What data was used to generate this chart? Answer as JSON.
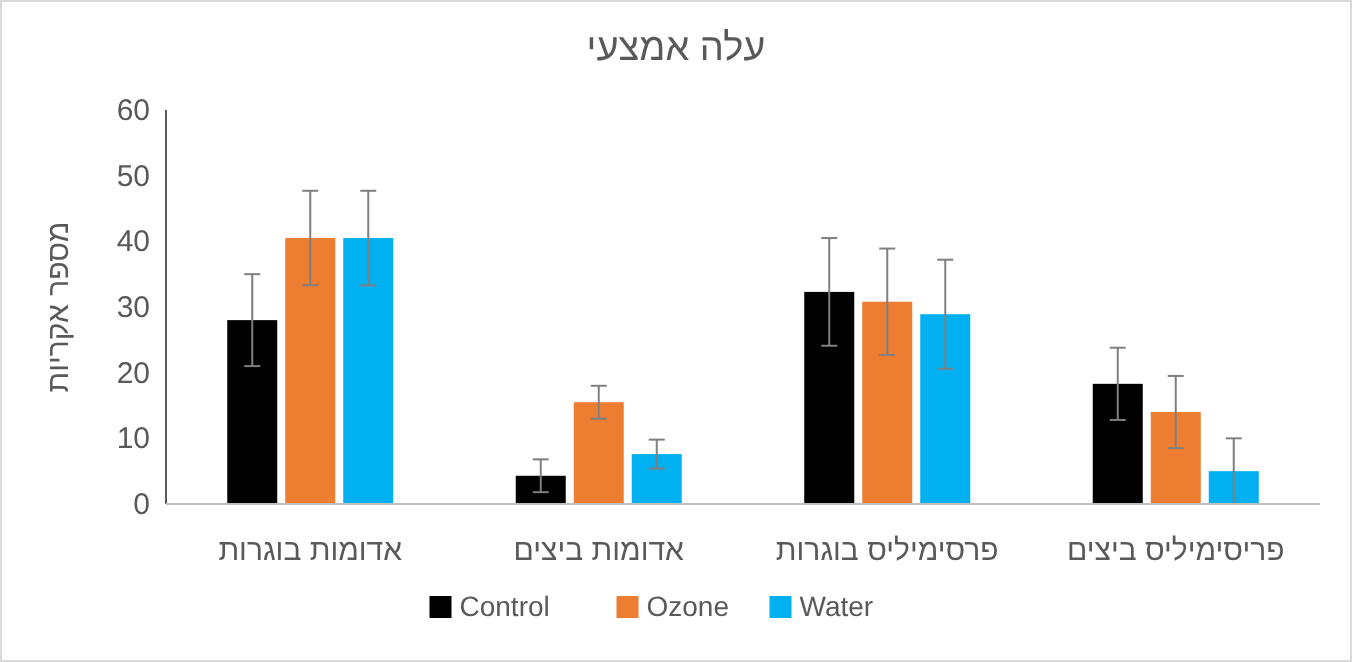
{
  "chart_data": {
    "type": "bar",
    "title": "עלה אמצעי",
    "ylabel": "מספר אקריות",
    "categories": [
      "אדומות בוגרות",
      "אדומות ביצים",
      "פרסימיליס בוגרות",
      "פריסימיליס ביצים"
    ],
    "series": [
      {
        "name": "Control",
        "color": "#000000",
        "values": [
          28,
          4.3,
          32.3,
          18.3
        ],
        "errors": [
          7,
          2.5,
          8.2,
          5.5
        ]
      },
      {
        "name": "Ozone",
        "color": "#ed7d31",
        "values": [
          40.5,
          15.5,
          30.8,
          14
        ],
        "errors": [
          7.2,
          2.5,
          8.1,
          5.5
        ]
      },
      {
        "name": "Water",
        "color": "#00b0f0",
        "values": [
          40.5,
          7.6,
          28.9,
          5
        ],
        "errors": [
          7.2,
          2.2,
          8.3,
          5
        ]
      }
    ],
    "ylim": [
      0,
      60
    ],
    "yticks": [
      0,
      10,
      20,
      30,
      40,
      50,
      60
    ],
    "legend": "bottom"
  }
}
